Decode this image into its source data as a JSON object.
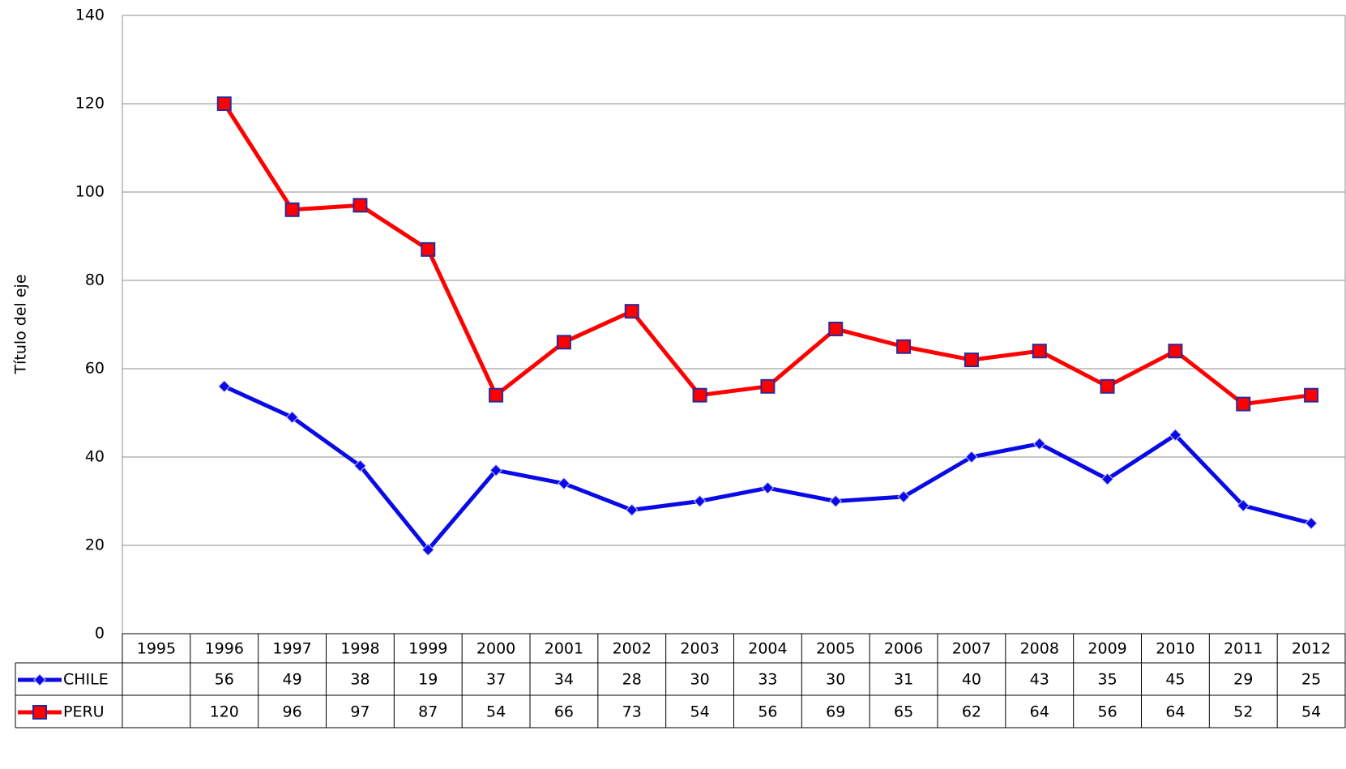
{
  "chart_data": {
    "type": "line",
    "y_label": "Título del eje",
    "categories": [
      "1995",
      "1996",
      "1997",
      "1998",
      "1999",
      "2000",
      "2001",
      "2002",
      "2003",
      "2004",
      "2005",
      "2006",
      "2007",
      "2008",
      "2009",
      "2010",
      "2011",
      "2012"
    ],
    "series": [
      {
        "name": "CHILE",
        "color": "#0a0ae6",
        "marker": "diamond",
        "values": [
          null,
          56,
          49,
          38,
          19,
          37,
          34,
          28,
          30,
          33,
          30,
          31,
          40,
          43,
          35,
          45,
          29,
          25
        ]
      },
      {
        "name": "PERU",
        "color": "#ff0000",
        "marker": "square",
        "values": [
          null,
          120,
          96,
          97,
          87,
          54,
          66,
          73,
          54,
          56,
          69,
          65,
          62,
          64,
          56,
          64,
          52,
          54
        ]
      }
    ],
    "ylim": [
      0,
      140
    ],
    "yticks": [
      0,
      20,
      40,
      60,
      80,
      100,
      120,
      140
    ],
    "grid": true,
    "data_table": true
  }
}
